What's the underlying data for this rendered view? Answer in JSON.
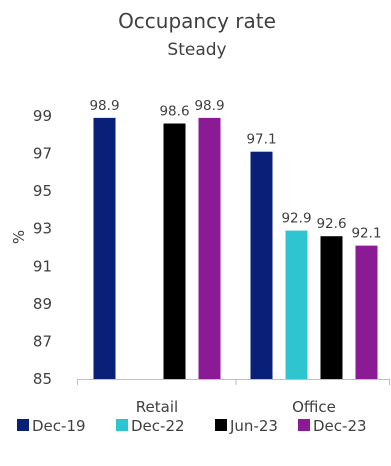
{
  "chart_data": {
    "type": "bar",
    "title": "Occupancy rate",
    "subtitle": "Steady",
    "xlabel": "",
    "ylabel": "%",
    "categories": [
      "Retail",
      "Office"
    ],
    "series": [
      {
        "name": "Dec-19",
        "values": [
          98.9,
          97.1
        ],
        "color": "#0a1f78"
      },
      {
        "name": "Dec-22",
        "values": [
          null,
          92.9
        ],
        "color": "#2ec4d0"
      },
      {
        "name": "Jun-23",
        "values": [
          98.6,
          92.6
        ],
        "color": "#000000"
      },
      {
        "name": "Dec-23",
        "values": [
          98.9,
          92.1
        ],
        "color": "#8a1b94"
      }
    ],
    "ylim": [
      85,
      99
    ],
    "yticks": [
      85,
      87,
      89,
      91,
      93,
      95,
      97,
      99
    ],
    "grid": false,
    "legend_position": "bottom",
    "data_labels": true
  }
}
